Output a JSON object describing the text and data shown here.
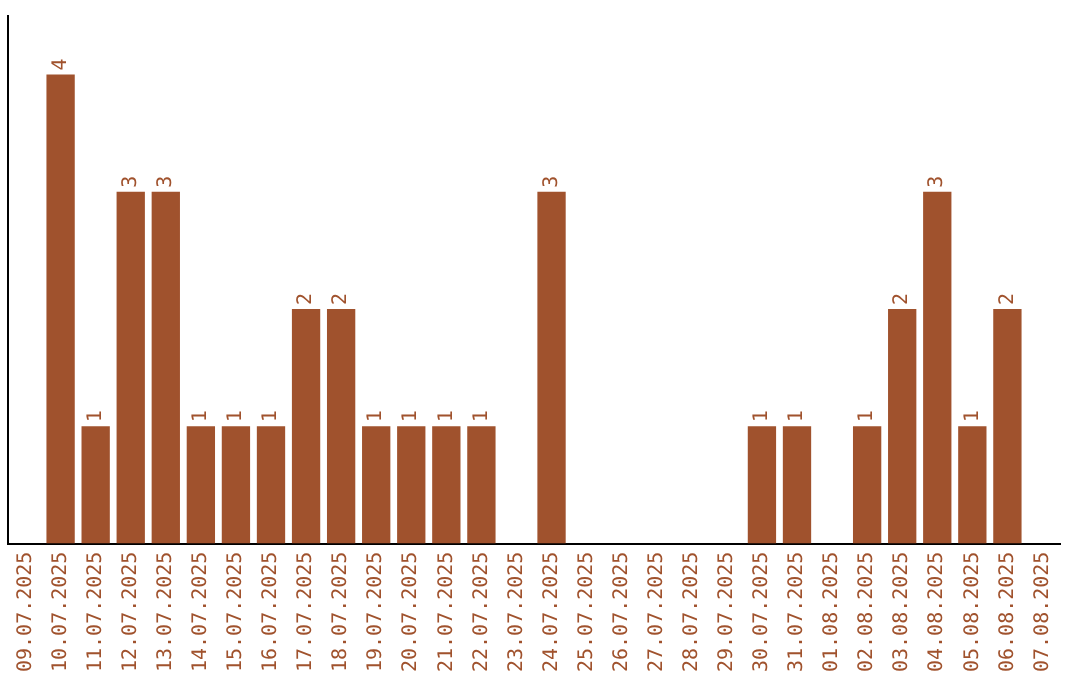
{
  "chart_data": {
    "type": "bar",
    "categories": [
      "09.07.2025",
      "10.07.2025",
      "11.07.2025",
      "12.07.2025",
      "13.07.2025",
      "14.07.2025",
      "15.07.2025",
      "16.07.2025",
      "17.07.2025",
      "18.07.2025",
      "19.07.2025",
      "20.07.2025",
      "21.07.2025",
      "22.07.2025",
      "23.07.2025",
      "24.07.2025",
      "25.07.2025",
      "26.07.2025",
      "27.07.2025",
      "28.07.2025",
      "29.07.2025",
      "30.07.2025",
      "31.07.2025",
      "01.08.2025",
      "02.08.2025",
      "03.08.2025",
      "04.08.2025",
      "05.08.2025",
      "06.08.2025",
      "07.08.2025"
    ],
    "values": [
      null,
      4,
      1,
      3,
      3,
      1,
      1,
      1,
      2,
      2,
      1,
      1,
      1,
      1,
      null,
      3,
      null,
      null,
      null,
      null,
      null,
      1,
      1,
      null,
      1,
      2,
      3,
      1,
      2,
      null
    ],
    "color": "#a0522d",
    "data_labels": true,
    "tick_labels": "x",
    "grid": false,
    "legend": false
  }
}
